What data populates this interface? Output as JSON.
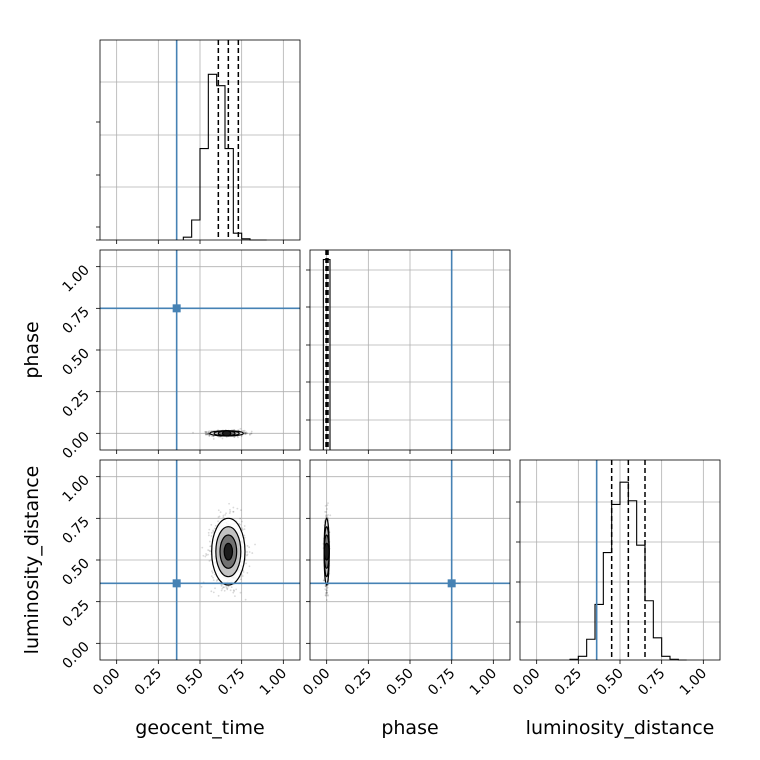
{
  "chart_data": {
    "type": "corner",
    "parameters": [
      "geocent_time",
      "phase",
      "luminosity_distance"
    ],
    "axis_limits": [
      [
        -0.1,
        1.1
      ],
      [
        -0.1,
        1.1
      ],
      [
        -0.1,
        1.1
      ]
    ],
    "tick_values": [
      0.0,
      0.25,
      0.5,
      0.75,
      1.0
    ],
    "tick_labels": [
      "0.00",
      "0.25",
      "0.50",
      "0.75",
      "1.00"
    ],
    "grid": true,
    "truths": {
      "values": [
        0.36,
        0.75,
        0.36
      ],
      "color": "#4682b4"
    },
    "histograms": [
      {
        "parameter": "geocent_time",
        "bin_edges": [
          0.4,
          0.45,
          0.5,
          0.55,
          0.6,
          0.65,
          0.7,
          0.75,
          0.8,
          0.85,
          0.9
        ],
        "counts": [
          0.5,
          3.5,
          16,
          29,
          27,
          16,
          1.2,
          0.2,
          0,
          0
        ],
        "ylim": [
          0,
          35
        ],
        "quantiles": [
          0.61,
          0.67,
          0.73
        ]
      },
      {
        "parameter": "phase",
        "bin_edges": [
          -0.02,
          0.0,
          0.02
        ],
        "counts": [
          1.0,
          1.0
        ],
        "ylim": [
          0,
          1.05
        ],
        "quantiles": [
          -0.004,
          0.0,
          0.008
        ]
      },
      {
        "parameter": "luminosity_distance",
        "bin_edges": [
          0.2,
          0.25,
          0.3,
          0.35,
          0.4,
          0.45,
          0.5,
          0.55,
          0.6,
          0.65,
          0.7,
          0.75,
          0.8,
          0.85,
          0.9
        ],
        "counts": [
          0.1,
          0.5,
          2.8,
          7.5,
          14.5,
          21,
          24,
          21.5,
          15.5,
          8,
          3,
          0.5,
          0.1,
          0
        ],
        "ylim": [
          0,
          27
        ],
        "quantiles": [
          0.45,
          0.55,
          0.65
        ]
      }
    ],
    "scatter_panels": [
      {
        "x": "geocent_time",
        "y": "phase",
        "center": [
          0.66,
          0.0
        ],
        "spread": [
          0.05,
          0.008
        ]
      },
      {
        "x": "geocent_time",
        "y": "luminosity_distance",
        "center": [
          0.67,
          0.55
        ],
        "spread": [
          0.05,
          0.1
        ]
      },
      {
        "x": "phase",
        "y": "luminosity_distance",
        "center": [
          0.0,
          0.55
        ],
        "spread": [
          0.006,
          0.1
        ]
      }
    ]
  }
}
